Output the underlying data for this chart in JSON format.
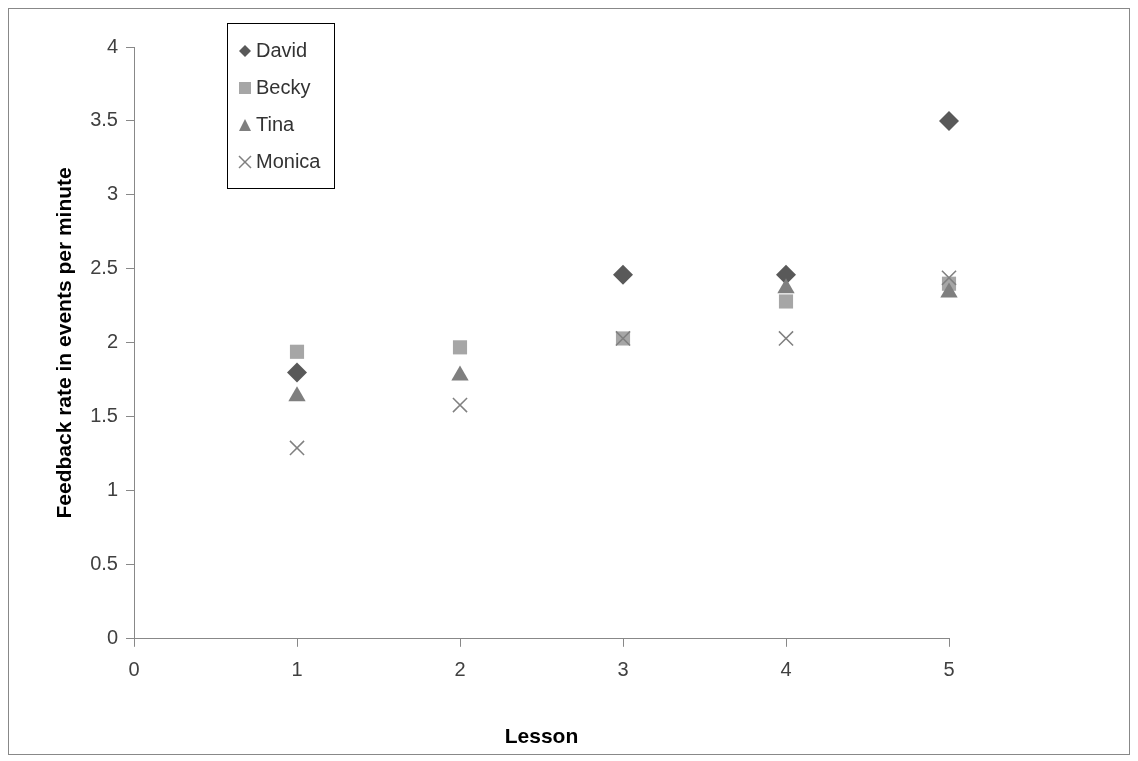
{
  "chart_data": {
    "type": "scatter",
    "xlabel": "Lesson",
    "ylabel": "Feedback rate in events per minute",
    "x": [
      1,
      2,
      3,
      4,
      5
    ],
    "series": [
      {
        "name": "David",
        "color": "#595959",
        "marker": "diamond",
        "values": [
          1.8,
          null,
          2.46,
          2.46,
          3.5
        ]
      },
      {
        "name": "Becky",
        "color": "#a6a6a6",
        "marker": "square",
        "values": [
          1.94,
          1.97,
          2.03,
          2.28,
          2.4
        ]
      },
      {
        "name": "Tina",
        "color": "#7f7f7f",
        "marker": "triangle",
        "values": [
          1.64,
          1.78,
          null,
          2.37,
          2.34
        ]
      },
      {
        "name": "Monica",
        "color": "#808080",
        "marker": "cross",
        "values": [
          1.29,
          1.58,
          2.03,
          2.03,
          2.44
        ]
      }
    ],
    "xlim": [
      0,
      5
    ],
    "xticks": [
      0,
      1,
      2,
      3,
      4,
      5
    ],
    "ylim": [
      0,
      4
    ],
    "yticks": [
      0,
      0.5,
      1,
      1.5,
      2,
      2.5,
      3,
      3.5,
      4
    ],
    "grid": false,
    "legend": "top left"
  }
}
